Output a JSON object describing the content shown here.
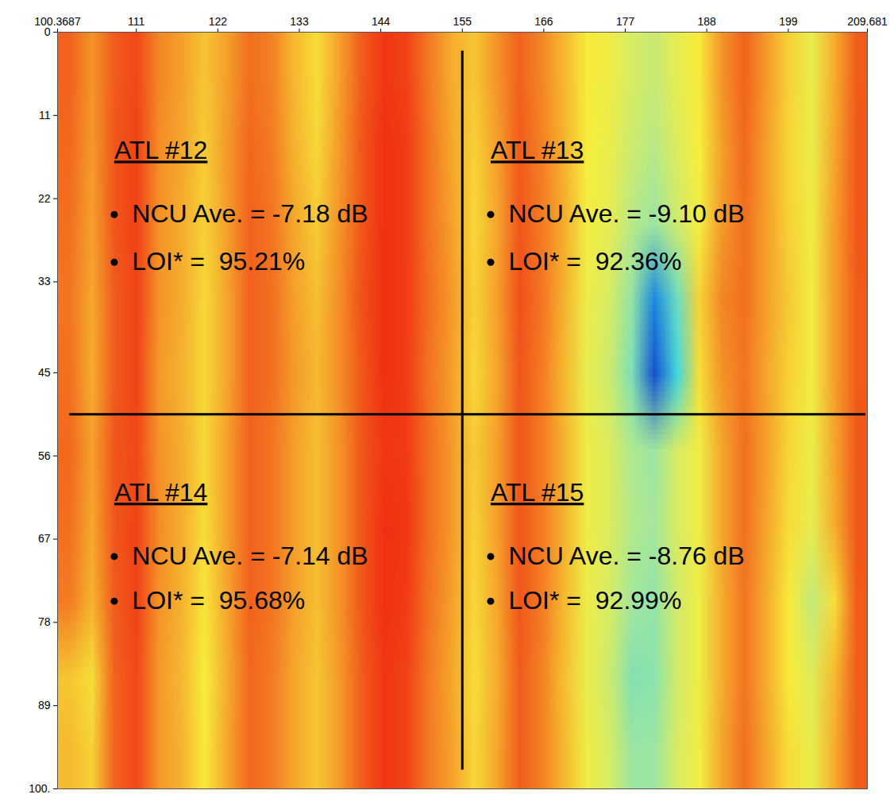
{
  "chart_data": {
    "type": "heatmap",
    "xlim": [
      100.3687,
      209.681
    ],
    "xticks": [
      100.3687,
      111,
      122,
      133,
      144,
      155,
      166,
      177,
      188,
      199,
      209.681
    ],
    "ylim": [
      0,
      100
    ],
    "yticks": [
      0,
      11,
      22,
      33,
      45,
      56,
      67,
      78,
      89,
      {
        "value": 100,
        "label": "100."
      }
    ],
    "zlim": [
      -18,
      -5
    ],
    "cells": [
      [
        -6.0,
        -6.8,
        -5.9,
        -5.6,
        -6.6,
        -7.0,
        -7.6,
        -7.0,
        -6.2,
        -6.5,
        -7.4,
        -8.0,
        -7.0,
        -5.9,
        -5.3,
        -5.5,
        -6.4,
        -7.2,
        -7.6,
        -6.8,
        -6.0,
        -6.6,
        -7.4,
        -8.2,
        -8.6,
        -9.6,
        -10.2,
        -9.0,
        -8.2,
        -6.8,
        -6.0,
        -6.9,
        -7.8,
        -8.8,
        -7.2,
        -5.9
      ],
      [
        -6.1,
        -6.9,
        -5.8,
        -5.5,
        -6.7,
        -7.1,
        -7.7,
        -6.9,
        -6.1,
        -6.4,
        -7.3,
        -7.9,
        -6.9,
        -5.8,
        -5.2,
        -5.4,
        -6.3,
        -7.1,
        -7.8,
        -7.0,
        -5.9,
        -6.5,
        -7.3,
        -8.3,
        -8.8,
        -10.0,
        -10.8,
        -9.4,
        -8.3,
        -7.0,
        -6.1,
        -7.0,
        -7.9,
        -8.7,
        -7.1,
        -5.8
      ],
      [
        -6.2,
        -7.0,
        -5.8,
        -5.5,
        -6.8,
        -7.2,
        -7.8,
        -7.0,
        -6.0,
        -6.3,
        -7.1,
        -7.7,
        -6.8,
        -5.8,
        -5.2,
        -5.4,
        -6.3,
        -7.0,
        -7.9,
        -7.1,
        -5.8,
        -6.4,
        -7.2,
        -8.5,
        -9.0,
        -10.8,
        -11.8,
        -10.0,
        -8.4,
        -6.9,
        -6.2,
        -7.0,
        -7.8,
        -8.6,
        -7.0,
        -5.8
      ],
      [
        -6.3,
        -7.1,
        -5.9,
        -5.5,
        -6.8,
        -7.2,
        -7.9,
        -7.1,
        -6.0,
        -6.2,
        -7.0,
        -7.5,
        -6.7,
        -5.7,
        -5.2,
        -5.4,
        -6.2,
        -6.9,
        -7.8,
        -7.0,
        -5.7,
        -6.3,
        -7.3,
        -8.7,
        -9.6,
        -12.0,
        -16.0,
        -13.0,
        -7.8,
        -6.6,
        -6.2,
        -7.0,
        -7.7,
        -8.5,
        -7.0,
        -5.9
      ],
      [
        -6.2,
        -7.2,
        -5.9,
        -5.5,
        -6.9,
        -7.3,
        -7.9,
        -7.1,
        -6.0,
        -6.2,
        -6.9,
        -7.4,
        -6.7,
        -5.8,
        -5.2,
        -5.4,
        -6.3,
        -7.0,
        -7.9,
        -7.1,
        -5.8,
        -6.4,
        -7.4,
        -8.9,
        -10.0,
        -12.6,
        -17.0,
        -14.0,
        -8.0,
        -6.8,
        -6.3,
        -7.1,
        -7.8,
        -8.5,
        -7.0,
        -5.9
      ],
      [
        -6.1,
        -7.0,
        -5.8,
        -5.6,
        -6.8,
        -7.2,
        -7.9,
        -7.0,
        -6.0,
        -6.3,
        -7.0,
        -7.5,
        -6.8,
        -5.8,
        -5.3,
        -5.4,
        -6.2,
        -6.9,
        -7.7,
        -7.0,
        -5.8,
        -6.4,
        -7.3,
        -8.6,
        -9.4,
        -11.2,
        -11.8,
        -9.6,
        -8.6,
        -7.1,
        -6.2,
        -7.0,
        -7.9,
        -8.7,
        -7.1,
        -5.8
      ],
      [
        -6.2,
        -7.1,
        -5.8,
        -5.5,
        -6.7,
        -7.2,
        -8.0,
        -7.0,
        -6.0,
        -6.3,
        -7.0,
        -7.5,
        -6.8,
        -5.8,
        -5.2,
        -5.3,
        -6.2,
        -6.9,
        -7.8,
        -7.0,
        -5.8,
        -6.4,
        -7.3,
        -8.6,
        -9.4,
        -11.0,
        -11.6,
        -9.6,
        -8.6,
        -7.1,
        -6.2,
        -7.1,
        -8.0,
        -8.9,
        -7.2,
        -5.8
      ],
      [
        -6.4,
        -7.3,
        -5.9,
        -5.5,
        -6.8,
        -7.3,
        -8.1,
        -7.1,
        -6.0,
        -6.3,
        -7.0,
        -7.5,
        -6.8,
        -5.8,
        -5.2,
        -5.4,
        -6.3,
        -7.0,
        -7.9,
        -7.1,
        -5.8,
        -6.4,
        -7.4,
        -8.7,
        -9.6,
        -11.6,
        -12.0,
        -9.8,
        -8.6,
        -7.2,
        -6.3,
        -7.2,
        -8.2,
        -10.4,
        -8.0,
        -5.9
      ],
      [
        -7.6,
        -8.0,
        -6.0,
        -5.6,
        -6.9,
        -7.4,
        -8.3,
        -7.2,
        -6.1,
        -6.4,
        -7.1,
        -7.6,
        -6.9,
        -5.9,
        -5.3,
        -5.5,
        -6.4,
        -7.1,
        -8.0,
        -7.2,
        -5.9,
        -6.5,
        -7.5,
        -8.8,
        -10.0,
        -12.4,
        -12.2,
        -9.8,
        -8.6,
        -7.2,
        -6.3,
        -7.2,
        -8.2,
        -9.2,
        -7.4,
        -5.9
      ],
      [
        -7.4,
        -7.8,
        -6.0,
        -5.6,
        -6.9,
        -7.3,
        -8.2,
        -7.1,
        -6.1,
        -6.4,
        -7.1,
        -7.6,
        -6.9,
        -5.9,
        -5.3,
        -5.5,
        -6.4,
        -7.0,
        -7.9,
        -7.1,
        -5.9,
        -6.5,
        -7.4,
        -8.6,
        -9.6,
        -11.8,
        -11.8,
        -9.6,
        -8.5,
        -7.1,
        -6.2,
        -7.1,
        -8.0,
        -8.8,
        -7.2,
        -5.9
      ]
    ],
    "quadrant_lines": {
      "x": 155,
      "y": 50.5
    },
    "annotations": [
      {
        "title": "ATL #12",
        "items": [
          "NCU Ave. = -7.18 dB",
          "LOI* =  95.21%"
        ]
      },
      {
        "title": "ATL #13",
        "items": [
          "NCU Ave. = -9.10 dB",
          "LOI* =  92.36%"
        ]
      },
      {
        "title": "ATL #14",
        "items": [
          "NCU Ave. = -7.14 dB",
          "LOI* =  95.68%"
        ]
      },
      {
        "title": "ATL #15",
        "items": [
          "NCU Ave. = -8.76 dB",
          "LOI* =  92.99%"
        ]
      }
    ]
  }
}
